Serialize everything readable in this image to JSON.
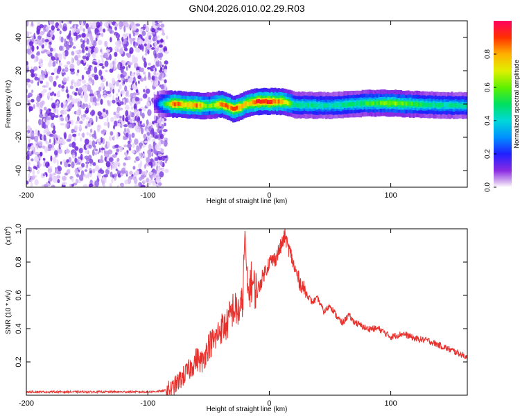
{
  "title": "GN04.2026.010.02.29.R03",
  "chart_data": [
    {
      "type": "heatmap",
      "xlabel": "Height of straight line (km)",
      "ylabel": "Frequency (Hz)",
      "xlim": [
        -200,
        163
      ],
      "ylim": [
        -50,
        50
      ],
      "xticks": [
        -200,
        -100,
        0,
        100
      ],
      "yticks": [
        -40,
        -20,
        0,
        20,
        40
      ],
      "colorbar": {
        "label": "Normalized spectral amplitude",
        "range": [
          0,
          1
        ],
        "ticks": [
          0.0,
          0.2,
          0.4,
          0.6,
          0.8
        ]
      },
      "noise_region": {
        "x_range": [
          -200,
          -87
        ],
        "amplitude": 0.15
      },
      "signal_band": {
        "x": [
          -95,
          -85,
          -80,
          -70,
          -60,
          -50,
          -45,
          -40,
          -35,
          -30,
          -25,
          -20,
          -10,
          0,
          5,
          10,
          20,
          50,
          80,
          100,
          130,
          163
        ],
        "center_hz": [
          0,
          0,
          0,
          -0.5,
          -1,
          -1,
          -0.5,
          0,
          -1.5,
          -3,
          -2,
          0,
          1.5,
          1.5,
          1.5,
          1.5,
          -0.5,
          -1,
          0.5,
          0.5,
          -0.5,
          -1
        ],
        "peak_amplitude": [
          0.15,
          0.6,
          0.9,
          0.8,
          0.85,
          0.6,
          0.7,
          0.9,
          0.85,
          0.9,
          0.85,
          0.8,
          0.95,
          0.95,
          0.9,
          0.85,
          0.5,
          0.45,
          0.55,
          0.65,
          0.5,
          0.45
        ]
      }
    },
    {
      "type": "line",
      "xlabel": "Height of straight line (km)",
      "ylabel": "SNR (10 * v/v)",
      "yscale_label": "(x10",
      "yscale_exp": "4",
      "yscale_suffix": ")",
      "xlim": [
        -200,
        163
      ],
      "ylim": [
        0,
        1.0
      ],
      "xticks": [
        -200,
        -100,
        0,
        100
      ],
      "yticks": [
        0.2,
        0.4,
        0.6,
        0.8,
        1.0
      ],
      "series": [
        {
          "color": "#e8302c",
          "x": [
            -200,
            -150,
            -100,
            -88,
            -80,
            -75,
            -70,
            -65,
            -60,
            -55,
            -50,
            -45,
            -40,
            -35,
            -30,
            -25,
            -22,
            -20,
            -18,
            -15,
            -10,
            -5,
            0,
            5,
            10,
            13,
            15,
            18,
            20,
            25,
            30,
            35,
            40,
            45,
            50,
            55,
            60,
            65,
            70,
            75,
            80,
            90,
            100,
            110,
            120,
            130,
            140,
            150,
            163
          ],
          "y": [
            0.02,
            0.02,
            0.02,
            0.025,
            0.04,
            0.08,
            0.12,
            0.16,
            0.22,
            0.2,
            0.3,
            0.33,
            0.4,
            0.42,
            0.52,
            0.5,
            0.55,
            1.0,
            0.6,
            0.68,
            0.62,
            0.72,
            0.8,
            0.82,
            0.9,
            0.96,
            0.9,
            0.84,
            0.78,
            0.68,
            0.62,
            0.56,
            0.58,
            0.5,
            0.54,
            0.48,
            0.43,
            0.48,
            0.44,
            0.42,
            0.4,
            0.4,
            0.35,
            0.37,
            0.34,
            0.33,
            0.3,
            0.27,
            0.23
          ]
        }
      ]
    }
  ]
}
